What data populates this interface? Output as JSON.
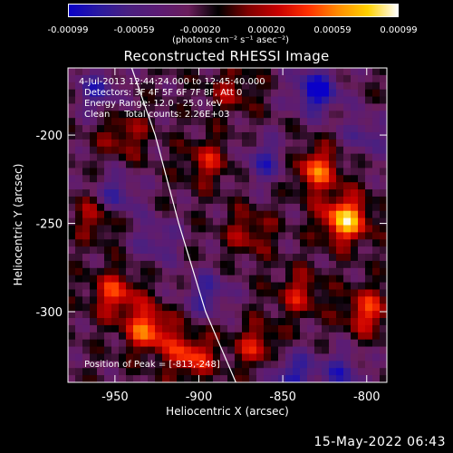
{
  "colorbar": {
    "ticks": [
      "-0.00099",
      "-0.00059",
      "-0.00020",
      "0.00020",
      "0.00059",
      "0.00099"
    ],
    "units_line": "(photons cm⁻² s⁻¹ asec⁻²)"
  },
  "title": "Reconstructed RHESSI Image",
  "annotations": {
    "line1": "4-Jul-2013 12:44:24.000 to 12:45:40.000",
    "line2": "Detectors: 3F 4F 5F 6F 7F 8F, Att 0",
    "line3": "Energy Range: 12.0 - 25.0 keV",
    "line4": "Clean     Total counts: 2.26E+03",
    "peak": "Position of Peak = [-813,-248]"
  },
  "footer": {
    "date": "15-May-2022 06:43"
  },
  "chart_data": {
    "type": "heatmap",
    "title": "Reconstructed RHESSI Image",
    "xlabel": "Heliocentric X (arcsec)",
    "ylabel": "Heliocentric Y (arcsec)",
    "xlim": [
      -978,
      -788
    ],
    "ylim": [
      -340,
      -162
    ],
    "x_ticks": [
      -950,
      -900,
      -850,
      -800
    ],
    "x_tick_labels": [
      "-950",
      "-900",
      "-850",
      "-800"
    ],
    "y_ticks": [
      -300,
      -250,
      -200
    ],
    "y_tick_labels": [
      "-300",
      "-250",
      "-200"
    ],
    "colorbar_range": [
      -0.00099,
      0.00099
    ],
    "colormap": [
      "#0a00c8",
      "#2a1aa0",
      "#4a2080",
      "#5c1c74",
      "#6a1e5c",
      "#000000",
      "#800000",
      "#c80000",
      "#ff3000",
      "#ff8c00",
      "#ffd200",
      "#ffffff"
    ],
    "peak_position": [
      -813,
      -248
    ],
    "limb_curve": [
      [
        -940,
        -162
      ],
      [
        -926,
        -200
      ],
      [
        -912,
        -250
      ],
      [
        -896,
        -300
      ],
      [
        -878,
        -340
      ]
    ],
    "hot_regions": [
      {
        "x": -813,
        "y": -248,
        "intensity": 0.00099
      },
      {
        "x": -830,
        "y": -220,
        "intensity": 0.0007
      },
      {
        "x": -800,
        "y": -300,
        "intensity": 0.0006
      },
      {
        "x": -930,
        "y": -310,
        "intensity": 0.00075
      },
      {
        "x": -905,
        "y": -325,
        "intensity": 0.00065
      },
      {
        "x": -950,
        "y": -290,
        "intensity": 0.0006
      },
      {
        "x": -960,
        "y": -245,
        "intensity": 0.0005
      },
      {
        "x": -945,
        "y": -200,
        "intensity": 0.0004
      },
      {
        "x": -895,
        "y": -215,
        "intensity": 0.00045
      },
      {
        "x": -870,
        "y": -255,
        "intensity": 0.0004
      },
      {
        "x": -865,
        "y": -320,
        "intensity": 0.0005
      },
      {
        "x": -880,
        "y": -175,
        "intensity": 0.00035
      },
      {
        "x": -840,
        "y": -290,
        "intensity": 0.00045
      }
    ],
    "cold_regions": [
      {
        "x": -830,
        "y": -175,
        "intensity": -0.0008
      },
      {
        "x": -950,
        "y": -235,
        "intensity": -0.0006
      },
      {
        "x": -895,
        "y": -290,
        "intensity": -0.0005
      },
      {
        "x": -845,
        "y": -335,
        "intensity": -0.0006
      },
      {
        "x": -960,
        "y": -175,
        "intensity": -0.0005
      },
      {
        "x": -815,
        "y": -335,
        "intensity": -0.0005
      },
      {
        "x": -860,
        "y": -215,
        "intensity": -0.0005
      },
      {
        "x": -925,
        "y": -260,
        "intensity": -0.0004
      },
      {
        "x": -800,
        "y": -200,
        "intensity": -0.0004
      }
    ]
  }
}
